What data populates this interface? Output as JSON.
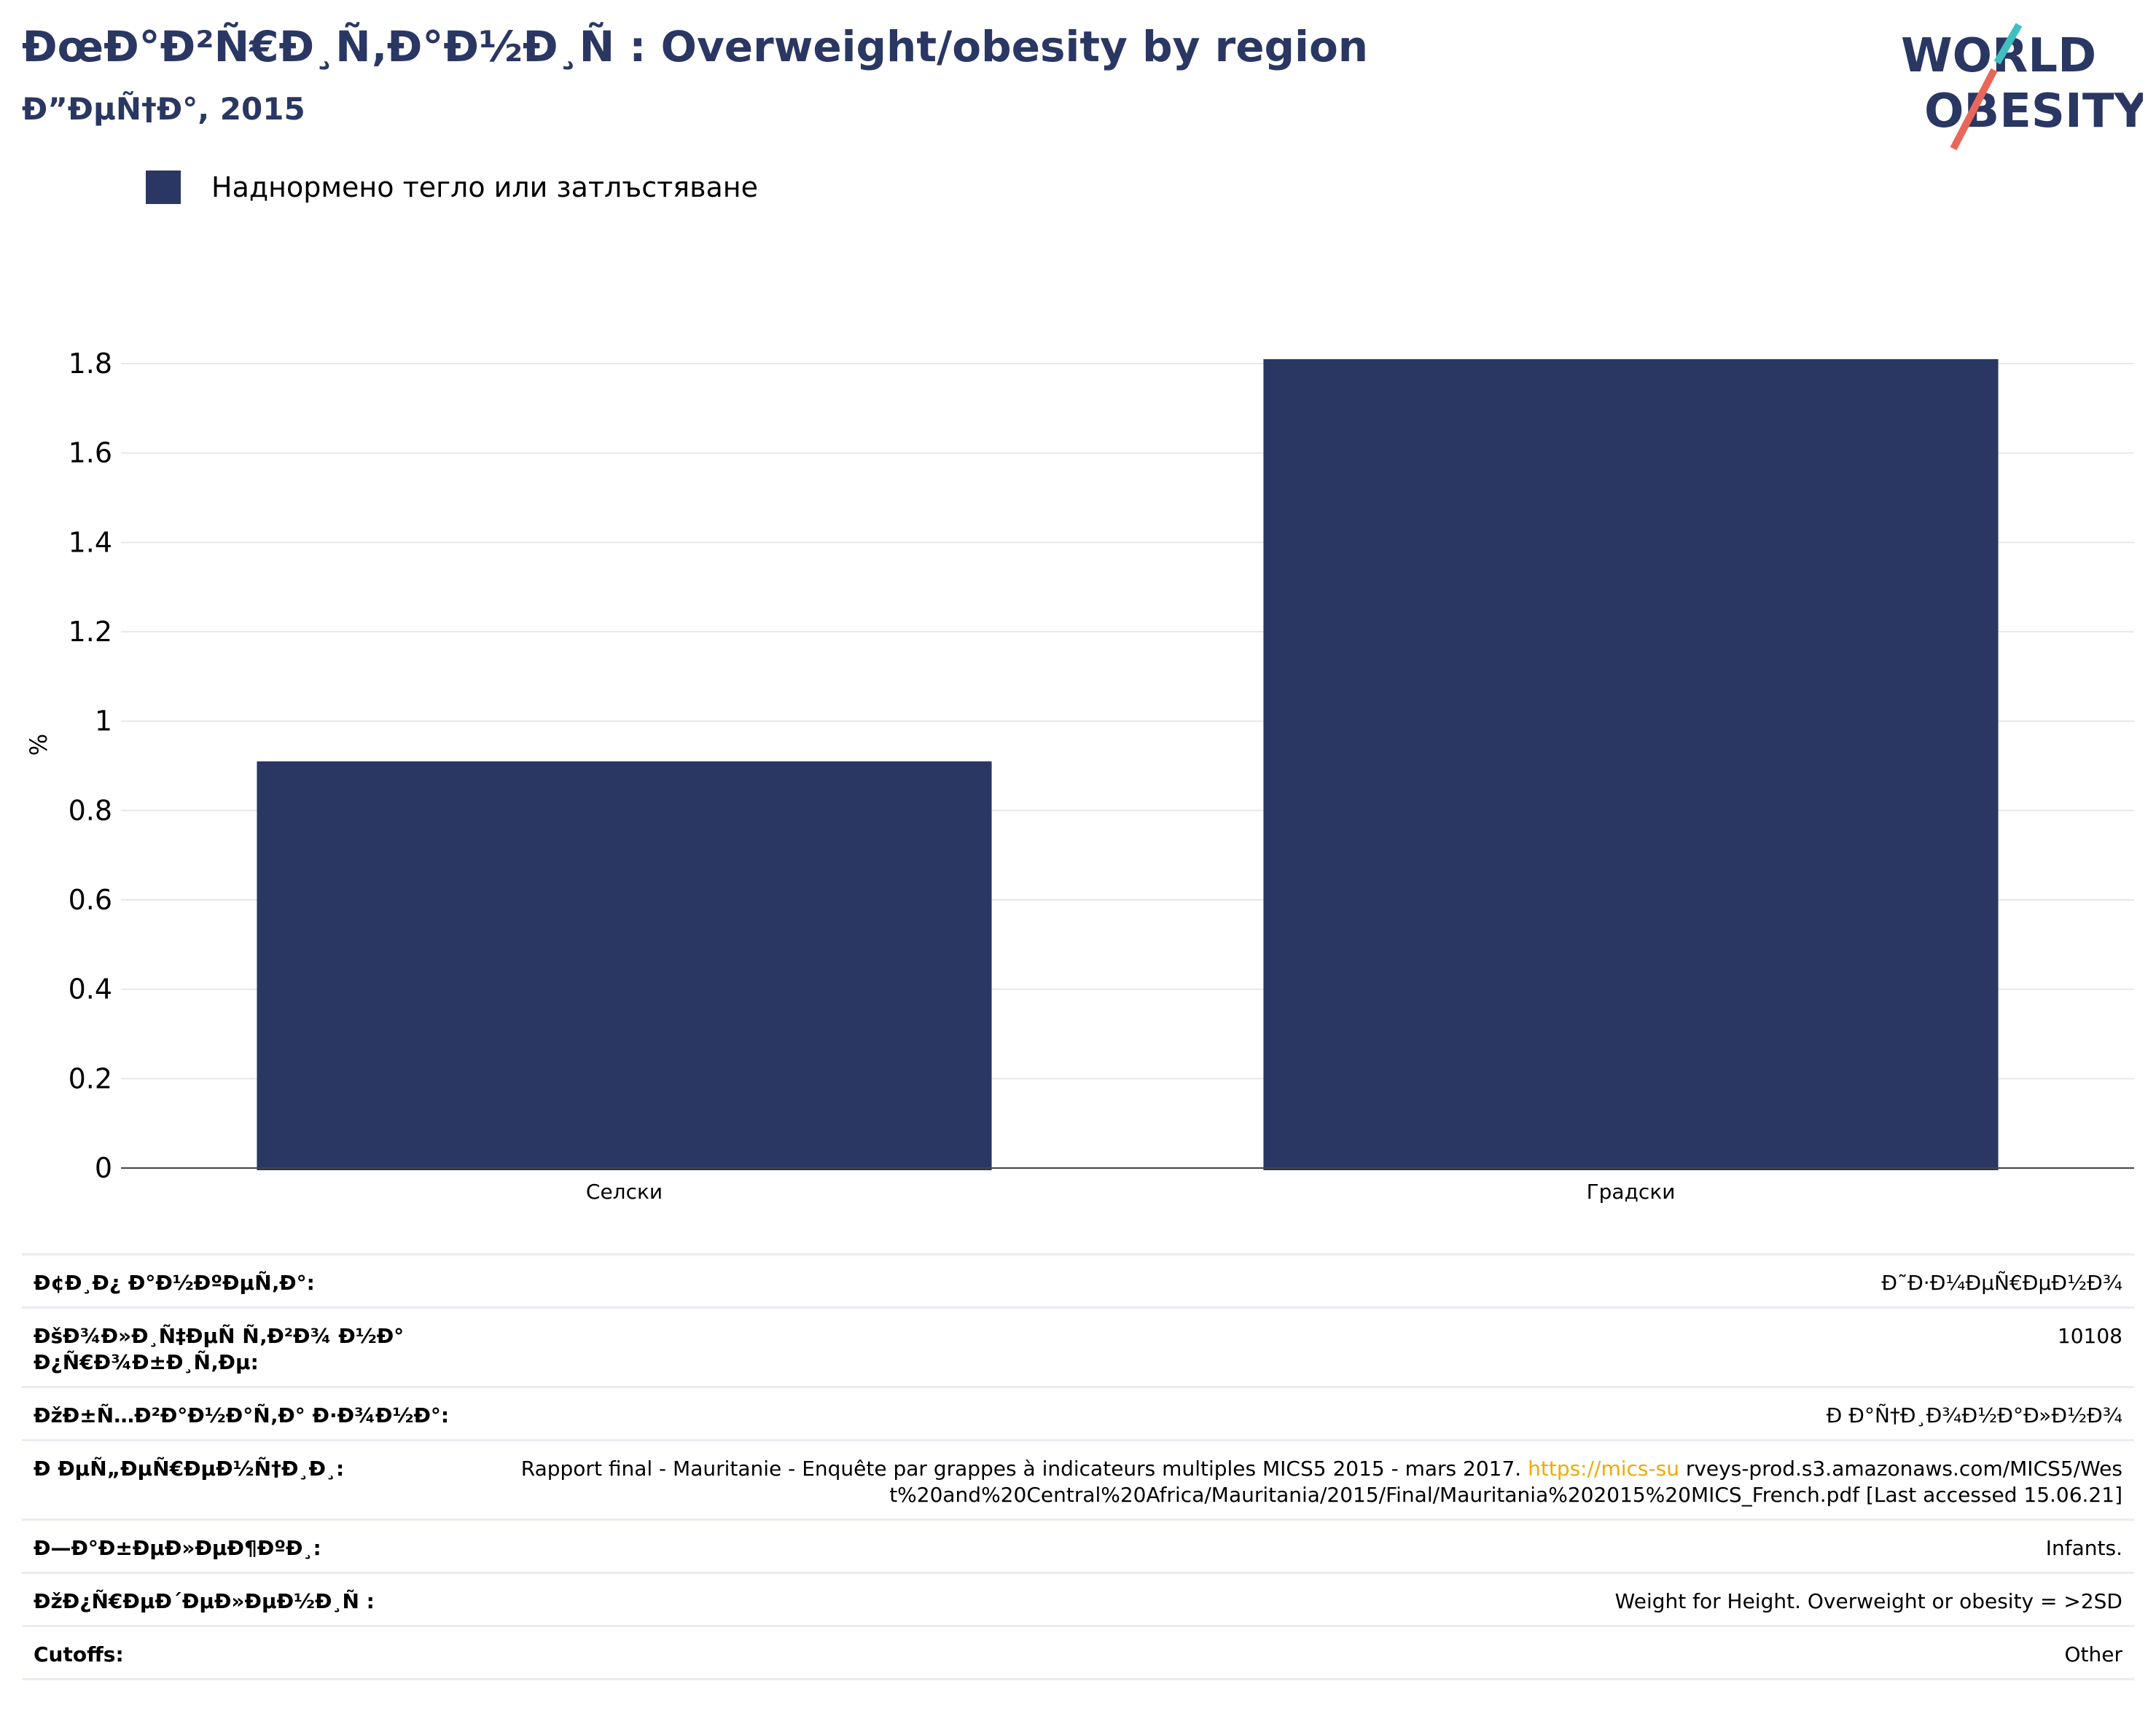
{
  "header": {
    "title": "ÐœÐ°Ð²Ñ€Ð¸Ñ‚Ð°Ð½Ð¸Ñ : Overweight/obesity by region",
    "subtitle": "Ð”ÐµÑ†Ð°, 2015"
  },
  "logo": {
    "line1": "WORLD",
    "line2": "OBESITY"
  },
  "colors": {
    "bar": "#2a3763",
    "accent_teal": "#3fbfbf",
    "accent_red": "#e8675a",
    "grid": "#e8e8ec"
  },
  "chart_data": {
    "type": "bar",
    "categories": [
      "Селски",
      "Градски"
    ],
    "series": [
      {
        "name": "Наднормено тегло или затлъстяване",
        "values": [
          0.91,
          1.81
        ]
      }
    ],
    "ylabel": "%",
    "ylim": [
      0,
      1.8
    ],
    "yticks": [
      "0",
      "0.2",
      "0.4",
      "0.6",
      "0.8",
      "1",
      "1.2",
      "1.4",
      "1.6",
      "1.8"
    ],
    "grid": true,
    "legend": "top-left"
  },
  "meta": [
    {
      "key": "Ð¢Ð¸Ð¿ Ð°Ð½ÐºÐµÑ‚Ð°:",
      "value": "Ð˜Ð·Ð¼ÐµÑ€ÐµÐ½Ð¾"
    },
    {
      "key": "ÐšÐ¾Ð»Ð¸Ñ‡ÐµÑ Ñ‚Ð²Ð¾ Ð½Ð° Ð¿Ñ€Ð¾Ð±Ð¸Ñ‚Ðµ:",
      "value": "10108"
    },
    {
      "key": "ÐžÐ±Ñ…Ð²Ð°Ð½Ð°Ñ‚Ð° Ð·Ð¾Ð½Ð°:",
      "value": "Ð Ð°Ñ†Ð¸Ð¾Ð½Ð°Ð»Ð½Ð¾"
    },
    {
      "key": "Ð ÐµÑ„ÐµÑ€ÐµÐ½Ñ†Ð¸Ð¸:",
      "value_before": "Rapport final - Mauritanie - Enquête par grappes à indicateurs multiples MICS5 2015 - mars 2017. ",
      "value_link": "https://mics-su",
      "value_after": "rveys-prod.s3.amazonaws.com/MICS5/West%20and%20Central%20Africa/Mauritania/2015/Final/Mauritania%202015%20MICS_French.pdf [Last accessed 15.06.21]"
    },
    {
      "key": "Ð—Ð°Ð±ÐµÐ»ÐµÐ¶ÐºÐ¸:",
      "value": "Infants."
    },
    {
      "key": "ÐžÐ¿Ñ€ÐµÐ´ÐµÐ»ÐµÐ½Ð¸Ñ :",
      "value": "Weight for Height. Overweight or obesity = >2SD"
    },
    {
      "key": "Cutoffs:",
      "value": "Other"
    }
  ]
}
